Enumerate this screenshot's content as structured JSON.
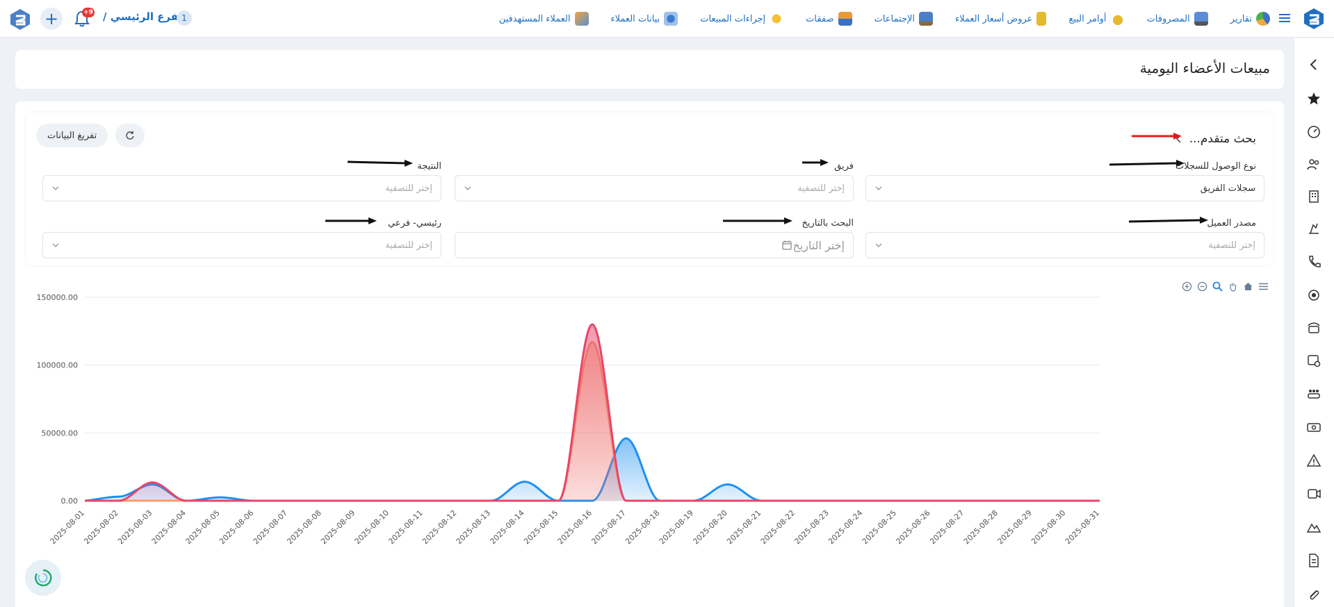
{
  "topbar": {
    "nav": [
      {
        "label": "العملاء المستهدفين",
        "icon": "target-customers-icon"
      },
      {
        "label": "بيانات العملاء",
        "icon": "customer-data-icon"
      },
      {
        "label": "إجراءات المبيعات",
        "icon": "sales-actions-icon"
      },
      {
        "label": "صفقات",
        "icon": "deals-icon"
      },
      {
        "label": "الإجتماعات",
        "icon": "meetings-icon"
      },
      {
        "label": "عروض أسعار العملاء",
        "icon": "quotes-icon"
      },
      {
        "label": "أوامر البيع",
        "icon": "sales-orders-icon"
      },
      {
        "label": "المصروفات",
        "icon": "expenses-icon"
      },
      {
        "label": "تقارير",
        "icon": "reports-icon"
      }
    ],
    "branch_label": "الفرع الرئيسي /",
    "branch_number": "1",
    "notification_count": "+9"
  },
  "page": {
    "title": "مبيعات الأعضاء اليومية"
  },
  "filters": {
    "advanced_search": "بحث متقدم...",
    "export_label": "تفريغ البيانات",
    "access_type": {
      "label": "نوع الوصول للسجلات",
      "value": "سجلات الفريق"
    },
    "team": {
      "label": "فريق",
      "placeholder": "إختر للتصفية"
    },
    "result": {
      "label": "النتيجة",
      "placeholder": "إختر للتصفية"
    },
    "customer_source": {
      "label": "مصدر العميل",
      "placeholder": "إختر للتصفية"
    },
    "date_search": {
      "label": "البحث بالتاريخ",
      "placeholder": "إختر التاريخ"
    },
    "main_sub": {
      "label": "رئيسي- فرعي",
      "placeholder": "إختر للتصفية"
    }
  },
  "chart_data": {
    "type": "area",
    "ylim": [
      0,
      150000
    ],
    "yticks": [
      "0.00",
      "50000.00",
      "100000.00",
      "150000.00"
    ],
    "x": [
      "2025-08-01",
      "2025-08-02",
      "2025-08-03",
      "2025-08-04",
      "2025-08-05",
      "2025-08-06",
      "2025-08-07",
      "2025-08-08",
      "2025-08-09",
      "2025-08-10",
      "2025-08-11",
      "2025-08-12",
      "2025-08-13",
      "2025-08-14",
      "2025-08-15",
      "2025-08-16",
      "2025-08-17",
      "2025-08-18",
      "2025-08-19",
      "2025-08-20",
      "2025-08-21",
      "2025-08-22",
      "2025-08-23",
      "2025-08-24",
      "2025-08-25",
      "2025-08-26",
      "2025-08-27",
      "2025-08-28",
      "2025-08-29",
      "2025-08-30",
      "2025-08-31"
    ],
    "series": [
      {
        "color": "#1e90f0",
        "values": [
          0,
          3000,
          12000,
          0,
          2500,
          0,
          0,
          0,
          0,
          0,
          0,
          0,
          0,
          14000,
          0,
          0,
          46000,
          0,
          0,
          12000,
          0,
          0,
          0,
          0,
          0,
          0,
          0,
          0,
          0,
          0,
          0
        ]
      },
      {
        "color": "#f5a46e",
        "values": [
          0,
          0,
          0,
          0,
          0,
          0,
          0,
          0,
          0,
          0,
          0,
          0,
          0,
          0,
          0,
          117000,
          0,
          0,
          0,
          0,
          0,
          0,
          0,
          0,
          0,
          0,
          0,
          0,
          0,
          0,
          0
        ]
      },
      {
        "color": "#e8456a",
        "values": [
          0,
          0,
          13500,
          0,
          0,
          0,
          0,
          0,
          0,
          0,
          0,
          0,
          0,
          0,
          0,
          130000,
          0,
          0,
          0,
          0,
          0,
          0,
          0,
          0,
          0,
          0,
          0,
          0,
          0,
          0,
          0
        ]
      }
    ],
    "grid": true
  }
}
